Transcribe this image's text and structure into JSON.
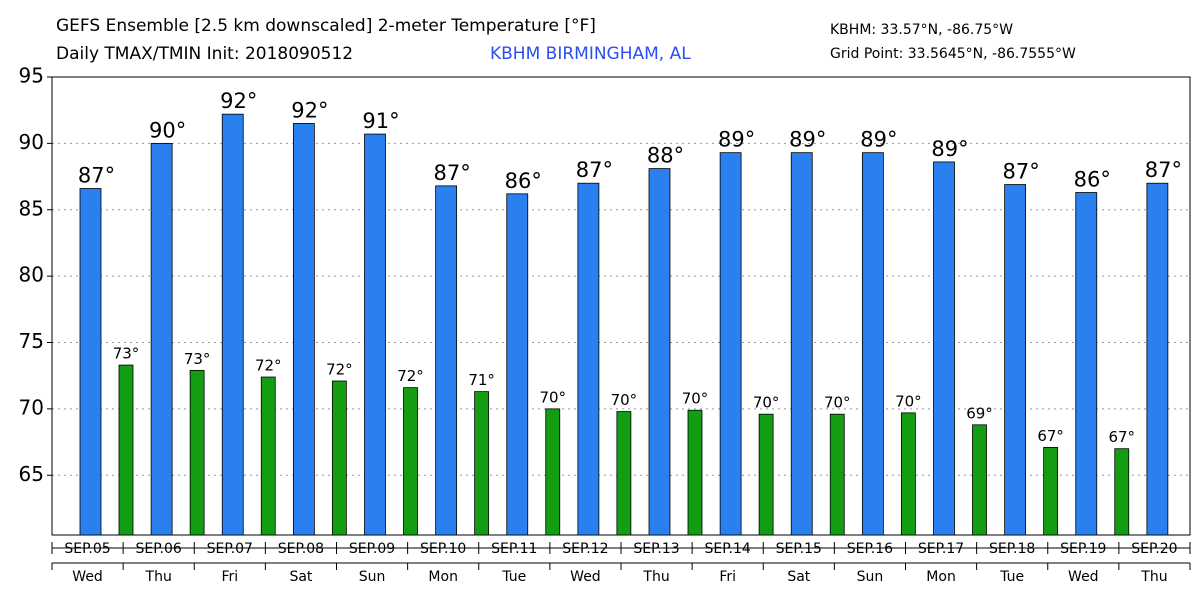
{
  "chart_data": {
    "type": "bar",
    "title": "GEFS Ensemble [2.5 km downscaled] 2-meter Temperature [°F]",
    "subtitle": "Daily TMAX/TMIN Init: 2018090512",
    "location": "KBHM BIRMINGHAM, AL",
    "station_coords": "KBHM: 33.57°N, -86.75°W",
    "grid_coords": "Grid Point: 33.5645°N, -86.7555°W",
    "categories": [
      "SEP.05",
      "SEP.06",
      "SEP.07",
      "SEP.08",
      "SEP.09",
      "SEP.10",
      "SEP.11",
      "SEP.12",
      "SEP.13",
      "SEP.14",
      "SEP.15",
      "SEP.16",
      "SEP.17",
      "SEP.18",
      "SEP.19",
      "SEP.20"
    ],
    "weekdays": [
      "Wed",
      "Thu",
      "Fri",
      "Sat",
      "Sun",
      "Mon",
      "Tue",
      "Wed",
      "Thu",
      "Fri",
      "Sat",
      "Sun",
      "Mon",
      "Tue",
      "Wed",
      "Thu"
    ],
    "series": [
      {
        "color": "#2b80f0",
        "values": [
          86.6,
          90.0,
          92.2,
          91.5,
          90.7,
          86.8,
          86.2,
          87.0,
          88.1,
          89.3,
          89.3,
          89.3,
          88.6,
          86.9,
          86.3,
          87.0
        ],
        "value_labels": [
          "87°",
          "90°",
          "92°",
          "92°",
          "91°",
          "87°",
          "86°",
          "87°",
          "88°",
          "89°",
          "89°",
          "89°",
          "89°",
          "87°",
          "86°",
          "87°"
        ]
      },
      {
        "color": "#139d13",
        "values": [
          73.3,
          72.9,
          72.4,
          72.1,
          71.6,
          71.3,
          70.0,
          69.8,
          69.9,
          69.6,
          69.6,
          69.7,
          68.8,
          67.1,
          67.0,
          null
        ],
        "value_labels": [
          "73°",
          "73°",
          "72°",
          "72°",
          "72°",
          "71°",
          "70°",
          "70°",
          "70°",
          "70°",
          "70°",
          "70°",
          "69°",
          "67°",
          "67°",
          null
        ]
      }
    ],
    "ylim": [
      60.5,
      95
    ],
    "yticks": [
      65,
      70,
      75,
      80,
      85,
      90,
      95
    ],
    "grid": true
  }
}
